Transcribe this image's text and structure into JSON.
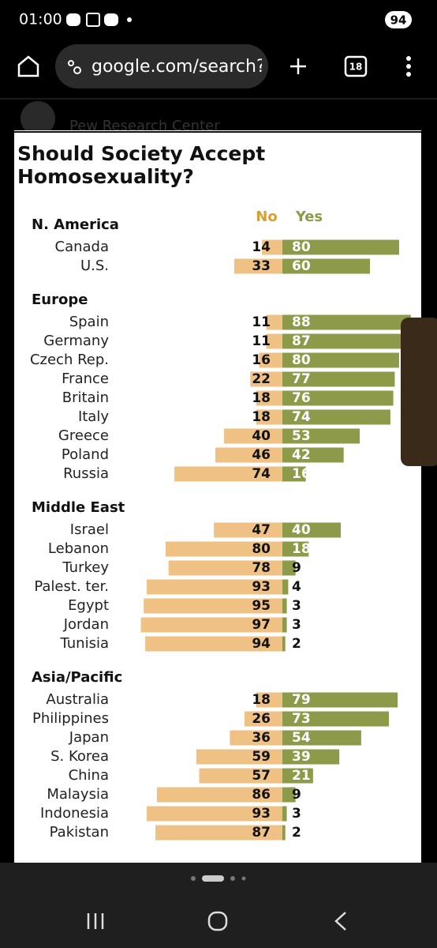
{
  "status_bar": {
    "time": "01:00",
    "battery": "94"
  },
  "browser": {
    "url": "google.com/search?",
    "tab_count": "18",
    "behind_title": "Pew Research Center"
  },
  "chart_data": {
    "type": "diverging_bar",
    "title": [
      "Should Society Accept",
      "Homosexuality?"
    ],
    "groups": [
      {
        "name": "N. America",
        "categories": [
          "Canada",
          "U.S."
        ]
      },
      {
        "name": "Europe",
        "categories": [
          "Spain",
          "Germany",
          "Czech Rep.",
          "France",
          "Britain",
          "Italy",
          "Greece",
          "Poland",
          "Russia"
        ]
      },
      {
        "name": "Middle East",
        "categories": [
          "Israel",
          "Lebanon",
          "Turkey",
          "Palest. ter.",
          "Egypt",
          "Jordan",
          "Tunisia"
        ]
      },
      {
        "name": "Asia/Pacific",
        "categories": [
          "Australia",
          "Philippines",
          "Japan",
          "S. Korea",
          "China",
          "Malaysia",
          "Indonesia",
          "Pakistan"
        ]
      }
    ],
    "series": [
      {
        "name": "No",
        "color": "#efc184",
        "label_color": "#d9a02e",
        "values": [
          14,
          33,
          11,
          11,
          16,
          22,
          18,
          18,
          40,
          46,
          74,
          47,
          80,
          78,
          93,
          95,
          97,
          94,
          18,
          26,
          36,
          59,
          57,
          86,
          93,
          87
        ]
      },
      {
        "name": "Yes",
        "color": "#8c9a4a",
        "label_color": "#8c9a4a",
        "values": [
          80,
          60,
          88,
          87,
          80,
          77,
          76,
          74,
          53,
          42,
          16,
          40,
          18,
          9,
          4,
          3,
          3,
          2,
          79,
          73,
          54,
          39,
          21,
          9,
          3,
          2
        ]
      }
    ]
  }
}
